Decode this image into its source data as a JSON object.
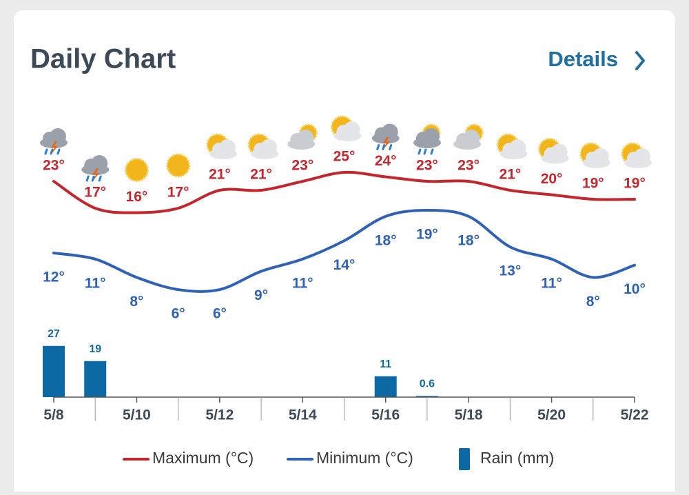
{
  "header": {
    "title": "Daily Chart",
    "link": "Details"
  },
  "chart_data": {
    "type": "line",
    "categories": [
      "5/8",
      null,
      "5/10",
      null,
      "5/12",
      null,
      "5/14",
      null,
      "5/16",
      null,
      "5/18",
      null,
      "5/20",
      null,
      "5/22"
    ],
    "series": [
      {
        "name": "Maximum (°C)",
        "color": "#c3262c",
        "values": [
          23,
          17,
          16,
          17,
          21,
          21,
          23,
          25,
          24,
          23,
          23,
          21,
          20,
          19,
          19
        ],
        "value_labels": [
          "23°",
          "17°",
          "16°",
          "17°",
          "21°",
          "21°",
          "23°",
          "25°",
          "24°",
          "23°",
          "23°",
          "21°",
          "20°",
          "19°",
          "19°"
        ]
      },
      {
        "name": "Minimum (°C)",
        "color": "#2f62b6",
        "values": [
          12,
          11,
          8,
          6,
          6,
          9,
          11,
          14,
          18,
          19,
          18,
          13,
          11,
          8,
          10
        ],
        "value_labels": [
          "12°",
          "11°",
          "8°",
          "6°",
          "6°",
          "9°",
          "11°",
          "14°",
          "18°",
          "19°",
          "18°",
          "13°",
          "11°",
          "8°",
          "10°"
        ]
      },
      {
        "name": "Rain (mm)",
        "type": "bar",
        "color": "#0d69a3",
        "values": [
          27,
          19,
          null,
          null,
          null,
          null,
          null,
          null,
          11,
          0.6,
          null,
          null,
          null,
          null,
          null
        ]
      }
    ]
  }
}
